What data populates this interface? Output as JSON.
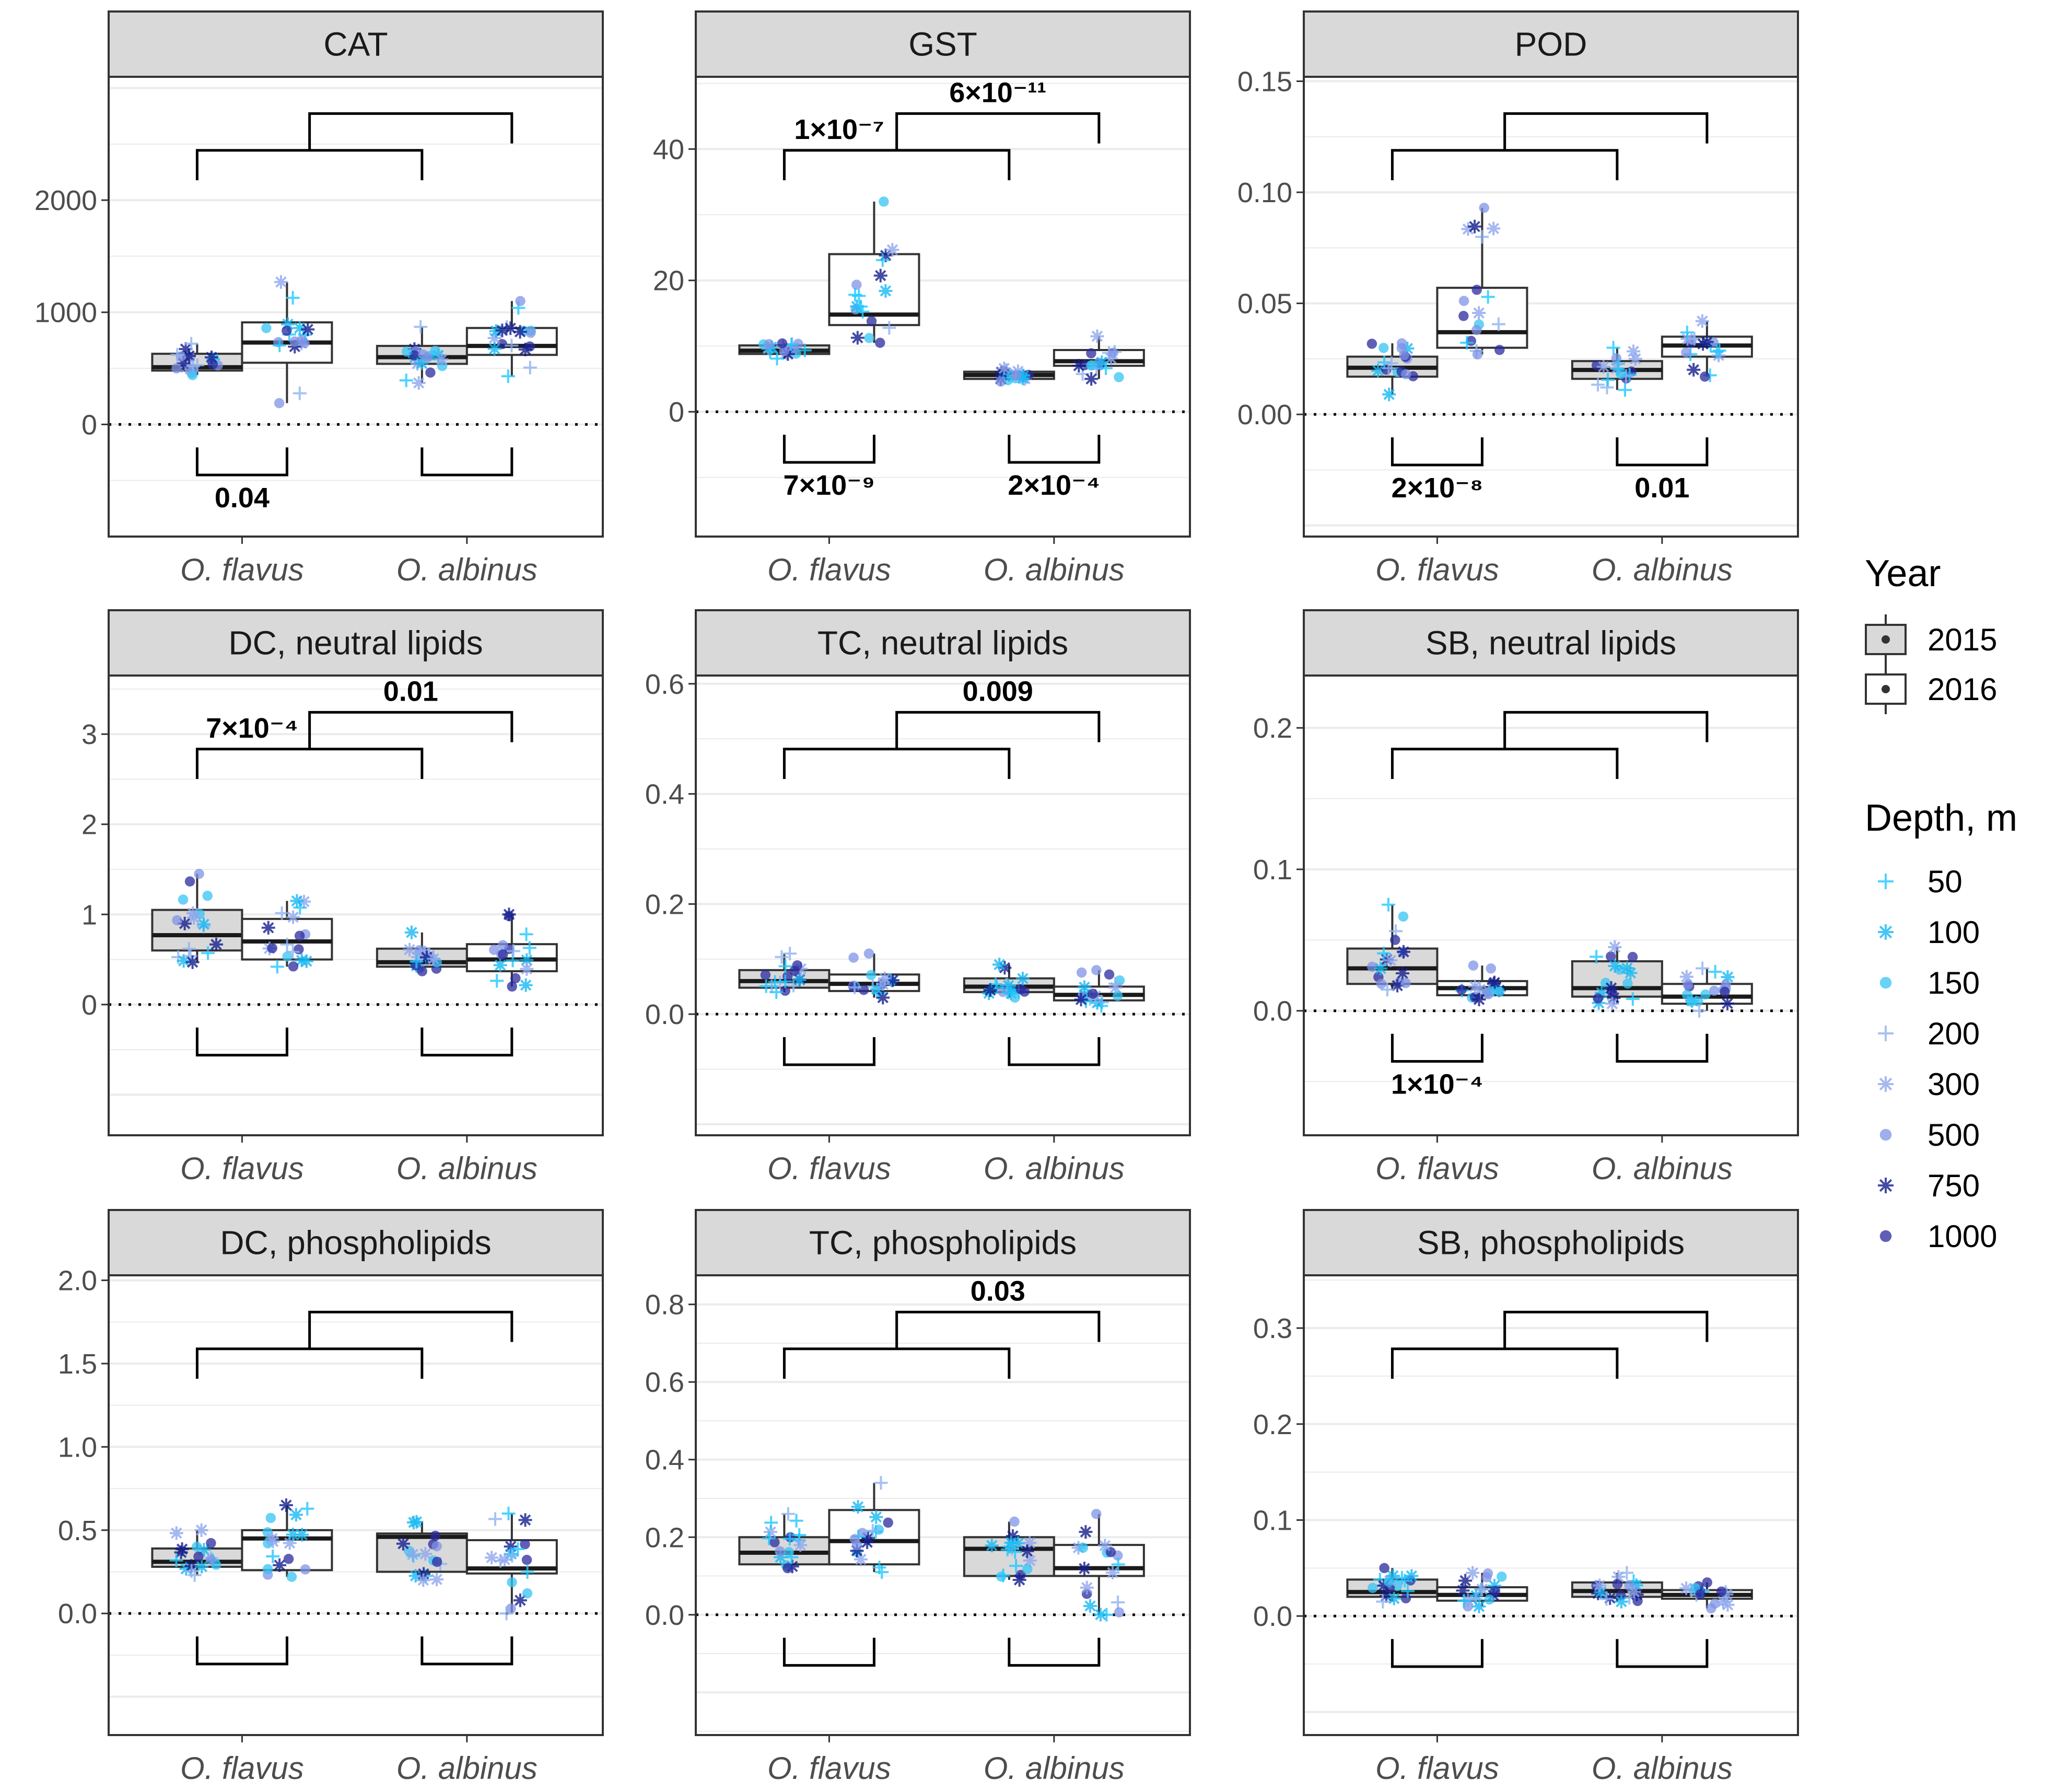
{
  "chart_data": {
    "type": "box",
    "species": [
      "O. flavus",
      "O. albinus"
    ],
    "legend_year": {
      "title": "Year",
      "items": [
        {
          "label": "2015",
          "fill": "#d9d9d9"
        },
        {
          "label": "2016",
          "fill": "#ffffff"
        }
      ]
    },
    "legend_depth": {
      "title": "Depth, m",
      "items": [
        {
          "label": "50",
          "color": "#1ec8ff",
          "shape": "plus"
        },
        {
          "label": "100",
          "color": "#16b8f2",
          "shape": "asterisk"
        },
        {
          "label": "150",
          "color": "#35c4f4",
          "shape": "circle"
        },
        {
          "label": "200",
          "color": "#8fb3f0",
          "shape": "plus"
        },
        {
          "label": "300",
          "color": "#8ea6ec",
          "shape": "asterisk"
        },
        {
          "label": "500",
          "color": "#7f93e6",
          "shape": "circle"
        },
        {
          "label": "750",
          "color": "#141e8c",
          "shape": "asterisk"
        },
        {
          "label": "1000",
          "color": "#2a2a9e",
          "shape": "circle"
        }
      ]
    },
    "panels": [
      {
        "title": "CAT",
        "ylim": [
          -1000,
          3100
        ],
        "ticks": [
          0,
          1000,
          2000
        ],
        "tick_labels": [
          "0",
          "1000",
          "2000"
        ],
        "boxes": [
          {
            "q1": 480,
            "median": 510,
            "q3": 630,
            "lo": 440,
            "hi": 720
          },
          {
            "q1": 550,
            "median": 730,
            "q3": 910,
            "lo": 190,
            "hi": 1270
          },
          {
            "q1": 540,
            "median": 600,
            "q3": 700,
            "lo": 370,
            "hi": 870
          },
          {
            "q1": 620,
            "median": 700,
            "q3": 860,
            "lo": 430,
            "hi": 1100
          }
        ],
        "upper_inner": null,
        "upper_outer": null,
        "lower_left": "0.04",
        "lower_right": null
      },
      {
        "title": "GST",
        "ylim": [
          -19,
          51
        ],
        "ticks": [
          0,
          20,
          40
        ],
        "tick_labels": [
          "0",
          "20",
          "40"
        ],
        "boxes": [
          {
            "q1": 8.8,
            "median": 9.3,
            "q3": 10.1,
            "lo": 8.1,
            "hi": 10.4
          },
          {
            "q1": 13.2,
            "median": 14.8,
            "q3": 24.0,
            "lo": 10.5,
            "hi": 32.0
          },
          {
            "q1": 5.0,
            "median": 5.6,
            "q3": 6.1,
            "lo": 4.6,
            "hi": 6.6
          },
          {
            "q1": 7.0,
            "median": 7.7,
            "q3": 9.4,
            "lo": 5.0,
            "hi": 11.5
          }
        ],
        "upper_inner": "1×10⁻⁷",
        "upper_outer": "6×10⁻¹¹",
        "lower_left": "7×10⁻⁹",
        "lower_right": "2×10⁻⁴"
      },
      {
        "title": "POD",
        "ylim": [
          -0.055,
          0.152
        ],
        "ticks": [
          0,
          0.05,
          0.1,
          0.15
        ],
        "tick_labels": [
          "0.00",
          "0.05",
          "0.10",
          "0.15"
        ],
        "boxes": [
          {
            "q1": 0.017,
            "median": 0.021,
            "q3": 0.026,
            "lo": 0.009,
            "hi": 0.032
          },
          {
            "q1": 0.03,
            "median": 0.037,
            "q3": 0.057,
            "lo": 0.027,
            "hi": 0.093
          },
          {
            "q1": 0.016,
            "median": 0.02,
            "q3": 0.024,
            "lo": 0.011,
            "hi": 0.03
          },
          {
            "q1": 0.026,
            "median": 0.031,
            "q3": 0.035,
            "lo": 0.017,
            "hi": 0.042
          }
        ],
        "upper_inner": null,
        "upper_outer": null,
        "lower_left": "2×10⁻⁸",
        "lower_right": "0.01"
      },
      {
        "title": "DC, neutral lipids",
        "ylim": [
          -1.45,
          3.65
        ],
        "ticks": [
          0,
          1,
          2,
          3
        ],
        "tick_labels": [
          "0",
          "1",
          "2",
          "3"
        ],
        "boxes": [
          {
            "q1": 0.6,
            "median": 0.77,
            "q3": 1.05,
            "lo": 0.47,
            "hi": 1.45
          },
          {
            "q1": 0.5,
            "median": 0.7,
            "q3": 0.95,
            "lo": 0.42,
            "hi": 1.15
          },
          {
            "q1": 0.42,
            "median": 0.47,
            "q3": 0.62,
            "lo": 0.37,
            "hi": 0.8
          },
          {
            "q1": 0.37,
            "median": 0.5,
            "q3": 0.67,
            "lo": 0.2,
            "hi": 1.0
          }
        ],
        "upper_inner": "7×10⁻⁴",
        "upper_outer": "0.01",
        "lower_left": null,
        "lower_right": null
      },
      {
        "title": "TC, neutral lipids",
        "ylim": [
          -0.22,
          0.615
        ],
        "ticks": [
          0,
          0.2,
          0.4,
          0.6
        ],
        "tick_labels": [
          "0.0",
          "0.2",
          "0.4",
          "0.6"
        ],
        "boxes": [
          {
            "q1": 0.048,
            "median": 0.06,
            "q3": 0.08,
            "lo": 0.04,
            "hi": 0.11
          },
          {
            "q1": 0.042,
            "median": 0.055,
            "q3": 0.072,
            "lo": 0.03,
            "hi": 0.11
          },
          {
            "q1": 0.04,
            "median": 0.05,
            "q3": 0.065,
            "lo": 0.03,
            "hi": 0.09
          },
          {
            "q1": 0.025,
            "median": 0.035,
            "q3": 0.05,
            "lo": 0.015,
            "hi": 0.08
          }
        ],
        "upper_inner": null,
        "upper_outer": "0.009",
        "lower_left": null,
        "lower_right": null
      },
      {
        "title": "SB, neutral lipids",
        "ylim": [
          -0.088,
          0.237
        ],
        "ticks": [
          0,
          0.1,
          0.2
        ],
        "tick_labels": [
          "0.0",
          "0.1",
          "0.2"
        ],
        "boxes": [
          {
            "q1": 0.019,
            "median": 0.03,
            "q3": 0.044,
            "lo": 0.015,
            "hi": 0.075
          },
          {
            "q1": 0.011,
            "median": 0.016,
            "q3": 0.021,
            "lo": 0.008,
            "hi": 0.032
          },
          {
            "q1": 0.01,
            "median": 0.016,
            "q3": 0.035,
            "lo": 0.005,
            "hi": 0.045
          },
          {
            "q1": 0.005,
            "median": 0.01,
            "q3": 0.019,
            "lo": 0.0,
            "hi": 0.03
          }
        ],
        "upper_inner": null,
        "upper_outer": null,
        "lower_left": "1×10⁻⁴",
        "lower_right": null
      },
      {
        "title": "DC, phospholipids",
        "ylim": [
          -0.73,
          2.03
        ],
        "ticks": [
          0,
          0.5,
          1.0,
          1.5,
          2.0
        ],
        "tick_labels": [
          "0.0",
          "0.5",
          "1.0",
          "1.5",
          "2.0"
        ],
        "boxes": [
          {
            "q1": 0.28,
            "median": 0.31,
            "q3": 0.39,
            "lo": 0.23,
            "hi": 0.5
          },
          {
            "q1": 0.26,
            "median": 0.45,
            "q3": 0.5,
            "lo": 0.22,
            "hi": 0.65
          },
          {
            "q1": 0.25,
            "median": 0.46,
            "q3": 0.48,
            "lo": 0.2,
            "hi": 0.55
          },
          {
            "q1": 0.24,
            "median": 0.27,
            "q3": 0.44,
            "lo": 0.0,
            "hi": 0.6
          }
        ],
        "upper_inner": null,
        "upper_outer": null,
        "lower_left": null,
        "lower_right": null
      },
      {
        "title": "TC, phospholipids",
        "ylim": [
          -0.31,
          0.875
        ],
        "ticks": [
          0,
          0.2,
          0.4,
          0.6,
          0.8
        ],
        "tick_labels": [
          "0.0",
          "0.2",
          "0.4",
          "0.6",
          "0.8"
        ],
        "boxes": [
          {
            "q1": 0.13,
            "median": 0.16,
            "q3": 0.2,
            "lo": 0.12,
            "hi": 0.26
          },
          {
            "q1": 0.13,
            "median": 0.19,
            "q3": 0.27,
            "lo": 0.11,
            "hi": 0.34
          },
          {
            "q1": 0.1,
            "median": 0.17,
            "q3": 0.2,
            "lo": 0.09,
            "hi": 0.24
          },
          {
            "q1": 0.1,
            "median": 0.12,
            "q3": 0.18,
            "lo": 0.0,
            "hi": 0.26
          }
        ],
        "upper_inner": null,
        "upper_outer": "0.03",
        "lower_left": null,
        "lower_right": null
      },
      {
        "title": "SB, phospholipids",
        "ylim": [
          -0.124,
          0.355
        ],
        "ticks": [
          0,
          0.1,
          0.2,
          0.3
        ],
        "tick_labels": [
          "0.0",
          "0.1",
          "0.2",
          "0.3"
        ],
        "boxes": [
          {
            "q1": 0.02,
            "median": 0.025,
            "q3": 0.038,
            "lo": 0.015,
            "hi": 0.05
          },
          {
            "q1": 0.016,
            "median": 0.022,
            "q3": 0.03,
            "lo": 0.01,
            "hi": 0.045
          },
          {
            "q1": 0.02,
            "median": 0.026,
            "q3": 0.035,
            "lo": 0.015,
            "hi": 0.045
          },
          {
            "q1": 0.018,
            "median": 0.022,
            "q3": 0.027,
            "lo": 0.008,
            "hi": 0.035
          }
        ],
        "upper_inner": null,
        "upper_outer": null,
        "lower_left": null,
        "lower_right": null
      }
    ]
  }
}
